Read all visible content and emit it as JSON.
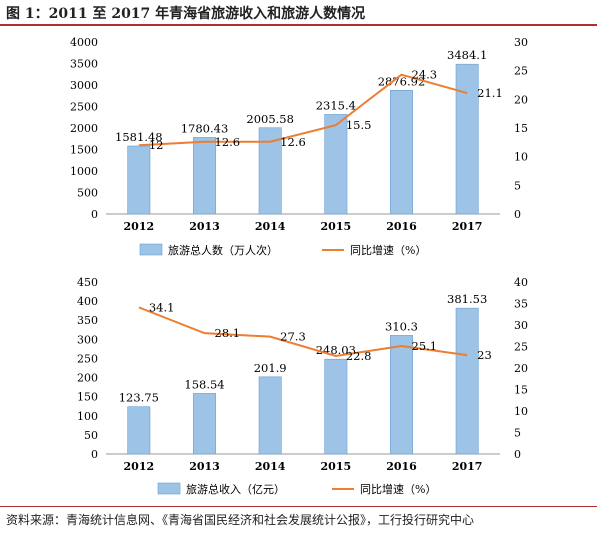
{
  "title": "图 1：2011 至 2017 年青海省旅游收入和旅游人数情况",
  "source": "资料来源：青海统计信息网、《青海省国民经济和社会发展统计公报》，工行投行研究中心",
  "colors": {
    "bar": "#9dc3e6",
    "bar_edge": "#6d9ecf",
    "line": "#ed7d31",
    "rule": "#b03030"
  },
  "chart_data": [
    {
      "type": "bar",
      "categories": [
        "2012",
        "2013",
        "2014",
        "2015",
        "2016",
        "2017"
      ],
      "series": [
        {
          "name": "旅游总人数（万人次）",
          "type": "bar",
          "axis": "left",
          "values": [
            1581.48,
            1780.43,
            2005.58,
            2315.4,
            2876.92,
            3484.1
          ],
          "labels": [
            "1581.48",
            "1780.43",
            "2005.58",
            "2315.4",
            "2876.92",
            "3484.1"
          ]
        },
        {
          "name": "同比增速（%）",
          "type": "line",
          "axis": "right",
          "values": [
            12,
            12.6,
            12.6,
            15.5,
            24.3,
            21.1
          ],
          "labels": [
            "12",
            "12.6",
            "12.6",
            "15.5",
            "24.3",
            "21.1"
          ]
        }
      ],
      "ylim": [
        0,
        4000
      ],
      "yticks": [
        "0",
        "500",
        "1000",
        "1500",
        "2000",
        "2500",
        "3000",
        "3500",
        "4000"
      ],
      "y2lim": [
        0,
        30
      ],
      "y2ticks": [
        "0",
        "5",
        "10",
        "15",
        "20",
        "25",
        "30"
      ],
      "legend": "bottom"
    },
    {
      "type": "bar",
      "categories": [
        "2012",
        "2013",
        "2014",
        "2015",
        "2016",
        "2017"
      ],
      "series": [
        {
          "name": "旅游总收入（亿元）",
          "type": "bar",
          "axis": "left",
          "values": [
            123.75,
            158.54,
            201.9,
            248.03,
            310.3,
            381.53
          ],
          "labels": [
            "123.75",
            "158.54",
            "201.9",
            "248.03",
            "310.3",
            "381.53"
          ]
        },
        {
          "name": "同比增速（%）",
          "type": "line",
          "axis": "right",
          "values": [
            34.1,
            28.1,
            27.3,
            22.8,
            25.1,
            23
          ],
          "labels": [
            "34.1",
            "28.1",
            "27.3",
            "22.8",
            "25.1",
            "23"
          ]
        }
      ],
      "ylim": [
        0,
        450
      ],
      "yticks": [
        "0",
        "50",
        "100",
        "150",
        "200",
        "250",
        "300",
        "350",
        "400",
        "450"
      ],
      "y2lim": [
        0,
        40
      ],
      "y2ticks": [
        "0",
        "5",
        "10",
        "15",
        "20",
        "25",
        "30",
        "35",
        "40"
      ],
      "legend": "bottom"
    }
  ]
}
